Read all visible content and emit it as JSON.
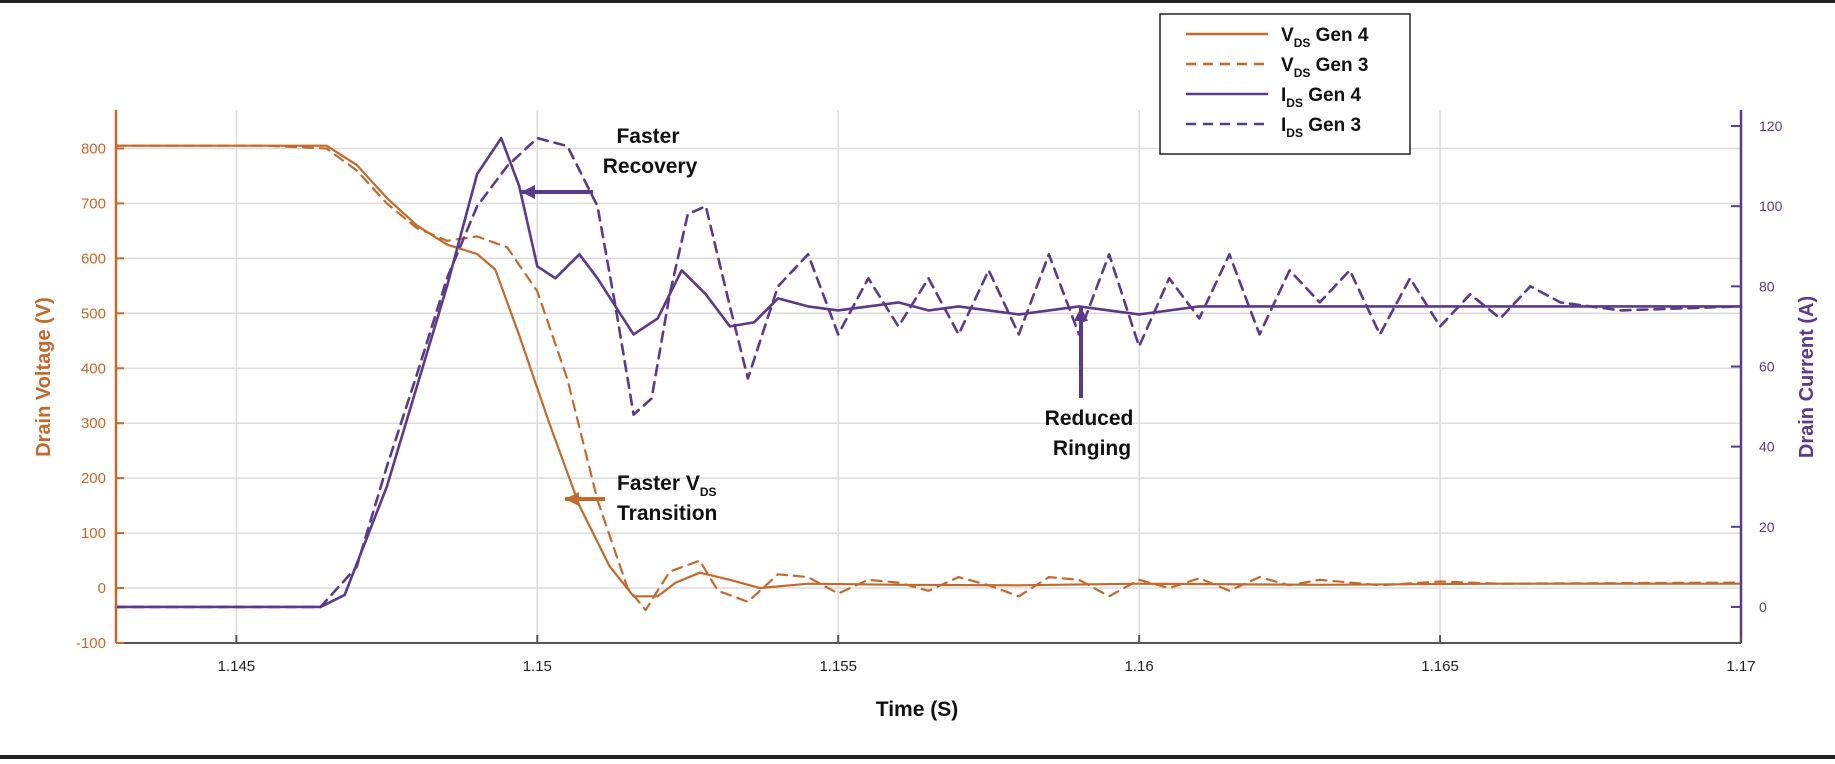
{
  "chart_data": {
    "type": "line",
    "title": "",
    "xlabel": "Time (S)",
    "ylabel_left": "Drain Voltage (V)",
    "ylabel_right": "Drain Current (A)",
    "xlim": [
      1.143,
      1.17
    ],
    "ylim_left": [
      -100,
      870
    ],
    "ylim_right": [
      -9,
      124
    ],
    "x_ticks": [
      1.145,
      1.15,
      1.155,
      1.16,
      1.165,
      1.17
    ],
    "x_tick_labels": [
      "1.145",
      "1.15",
      "1.155",
      "1.16",
      "1.165",
      "1.17"
    ],
    "y_ticks_left": [
      -100,
      0,
      100,
      200,
      300,
      400,
      500,
      600,
      700,
      800
    ],
    "y_tick_labels_left": [
      "-100",
      "0",
      "100",
      "200",
      "300",
      "400",
      "500",
      "600",
      "700",
      "800"
    ],
    "y_ticks_right": [
      0,
      20,
      40,
      60,
      80,
      100,
      120
    ],
    "y_tick_labels_right": [
      "0",
      "20",
      "40",
      "60",
      "80",
      "100",
      "120"
    ],
    "grid": true,
    "legend_position": "top-right",
    "colors": {
      "vds": "#c4692b",
      "ids": "#5b3a8c"
    },
    "series": [
      {
        "name": "V_DS Gen 4",
        "label_main": "V",
        "label_sub": "DS",
        "label_tail": " Gen 4",
        "axis": "left",
        "color": "#c4692b",
        "dash": "solid",
        "x": [
          1.143,
          1.1455,
          1.1465,
          1.147,
          1.1475,
          1.148,
          1.1485,
          1.149,
          1.1493,
          1.1497,
          1.1502,
          1.1507,
          1.1512,
          1.1516,
          1.152,
          1.1523,
          1.1527,
          1.1532,
          1.1537,
          1.1545,
          1.156,
          1.158,
          1.16,
          1.163,
          1.166,
          1.17
        ],
        "y": [
          805,
          805,
          805,
          770,
          710,
          660,
          625,
          608,
          580,
          460,
          300,
          150,
          40,
          -15,
          -15,
          10,
          28,
          15,
          0,
          8,
          6,
          5,
          8,
          6,
          8,
          8
        ]
      },
      {
        "name": "V_DS Gen 3",
        "label_main": "V",
        "label_sub": "DS",
        "label_tail": " Gen 3",
        "axis": "left",
        "color": "#c4692b",
        "dash": "dashed",
        "x": [
          1.143,
          1.1455,
          1.1465,
          1.147,
          1.1475,
          1.148,
          1.1485,
          1.149,
          1.1495,
          1.15,
          1.1505,
          1.151,
          1.1515,
          1.1518,
          1.1522,
          1.1527,
          1.153,
          1.1535,
          1.154,
          1.1545,
          1.155,
          1.1555,
          1.156,
          1.1565,
          1.157,
          1.1575,
          1.158,
          1.1585,
          1.159,
          1.1595,
          1.16,
          1.1605,
          1.161,
          1.1615,
          1.162,
          1.1625,
          1.163,
          1.164,
          1.165,
          1.166,
          1.17
        ],
        "y": [
          805,
          805,
          800,
          760,
          700,
          655,
          632,
          640,
          620,
          540,
          380,
          160,
          0,
          -40,
          30,
          50,
          -5,
          -25,
          25,
          20,
          -10,
          15,
          10,
          -5,
          20,
          5,
          -15,
          20,
          15,
          -15,
          15,
          0,
          18,
          -5,
          20,
          5,
          15,
          5,
          12,
          8,
          10
        ]
      },
      {
        "name": "I_DS Gen 4",
        "label_main": "I",
        "label_sub": "DS",
        "label_tail": " Gen 4",
        "axis": "right",
        "color": "#5b3a8c",
        "dash": "solid",
        "x": [
          1.143,
          1.1464,
          1.1468,
          1.1475,
          1.148,
          1.1485,
          1.149,
          1.1494,
          1.1497,
          1.15,
          1.1503,
          1.1507,
          1.151,
          1.1513,
          1.1516,
          1.152,
          1.1524,
          1.1528,
          1.1532,
          1.1536,
          1.154,
          1.1545,
          1.155,
          1.1555,
          1.156,
          1.1565,
          1.157,
          1.158,
          1.159,
          1.16,
          1.161,
          1.162,
          1.165,
          1.17
        ],
        "y": [
          0,
          0,
          3,
          30,
          55,
          80,
          108,
          117,
          105,
          85,
          82,
          88,
          82,
          75,
          68,
          72,
          84,
          78,
          70,
          71,
          77,
          75,
          74,
          75,
          76,
          74,
          75,
          73,
          75,
          73,
          75,
          75,
          75,
          75
        ]
      },
      {
        "name": "I_DS Gen 3",
        "label_main": "I",
        "label_sub": "DS",
        "label_tail": " Gen 3",
        "axis": "right",
        "color": "#5b3a8c",
        "dash": "dashed",
        "x": [
          1.143,
          1.1464,
          1.147,
          1.1475,
          1.148,
          1.1485,
          1.149,
          1.1495,
          1.15,
          1.1505,
          1.151,
          1.1513,
          1.1516,
          1.1519,
          1.1522,
          1.1525,
          1.1528,
          1.1532,
          1.1535,
          1.154,
          1.1545,
          1.155,
          1.1555,
          1.156,
          1.1565,
          1.157,
          1.1575,
          1.158,
          1.1585,
          1.159,
          1.1595,
          1.16,
          1.1605,
          1.161,
          1.1615,
          1.162,
          1.1625,
          1.163,
          1.1635,
          1.164,
          1.1645,
          1.165,
          1.1655,
          1.166,
          1.1665,
          1.167,
          1.168,
          1.17
        ],
        "y": [
          0,
          0,
          10,
          35,
          58,
          82,
          100,
          110,
          117,
          115,
          100,
          75,
          48,
          52,
          78,
          98,
          100,
          75,
          57,
          80,
          88,
          68,
          82,
          70,
          82,
          68,
          84,
          68,
          88,
          68,
          88,
          65,
          82,
          72,
          88,
          68,
          84,
          76,
          84,
          68,
          82,
          70,
          78,
          72,
          80,
          76,
          74,
          75
        ]
      }
    ],
    "annotations": [
      {
        "id": "faster-recovery",
        "lines": [
          "Faster",
          "Recovery"
        ],
        "arrow_color": "#5b3a8c"
      },
      {
        "id": "faster-vds",
        "line1_main": "Faster V",
        "line1_sub": "DS",
        "line2": "Transition",
        "arrow_color": "#c4692b"
      },
      {
        "id": "reduced-ringing",
        "lines": [
          "Reduced",
          "Ringing"
        ],
        "arrow_color": "#5b3a8c"
      }
    ]
  }
}
